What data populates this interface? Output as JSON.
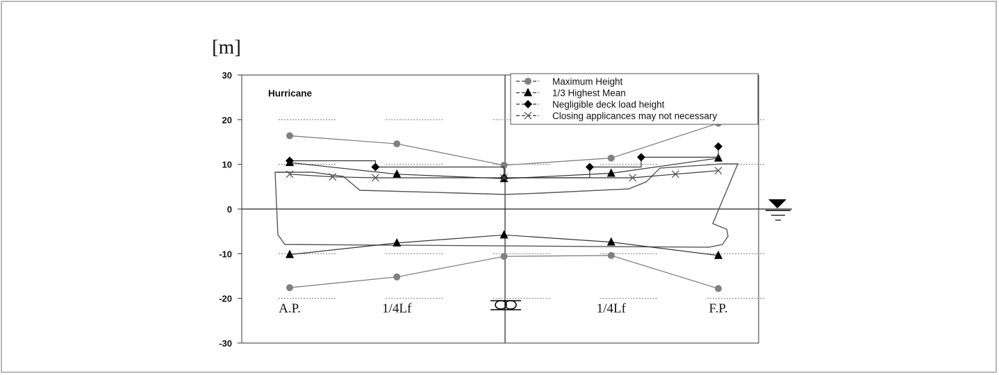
{
  "unit_label": "[m]",
  "chart_data": {
    "type": "line",
    "annotation": "Hurricane",
    "ylim": [
      -30,
      30
    ],
    "yticks": [
      30,
      20,
      10,
      0,
      -10,
      -20,
      -30
    ],
    "x_positions": [
      "A.P.",
      "1/4Lf",
      "1/4Lf",
      "F.P."
    ],
    "grid": false,
    "legend_position": "top-right",
    "series": [
      {
        "name": "Maximum Height",
        "marker": "circle",
        "color": "#808080",
        "x": [
          0,
          0.25,
          0.5,
          0.75,
          1.0
        ],
        "y": [
          16.4,
          14.6,
          9.8,
          11.4,
          19.2
        ]
      },
      {
        "name": "Maximum Height",
        "marker": "circle",
        "color": "#808080",
        "x": [
          0,
          0.25,
          0.5,
          0.75,
          1.0
        ],
        "y": [
          -17.6,
          -15.2,
          -10.6,
          -10.4,
          -17.8
        ]
      },
      {
        "name": "1/3 Highest Mean",
        "marker": "triangle",
        "color": "#000000",
        "x": [
          0,
          0.25,
          0.5,
          0.75,
          1.0
        ],
        "y": [
          10.4,
          7.8,
          6.8,
          8.0,
          11.4
        ]
      },
      {
        "name": "1/3 Highest Mean",
        "marker": "triangle",
        "color": "#000000",
        "x": [
          0,
          0.25,
          0.5,
          0.75,
          1.0
        ],
        "y": [
          -10.2,
          -7.6,
          -5.8,
          -7.4,
          -10.4
        ]
      },
      {
        "name": "Negligible deck load height",
        "marker": "diamond",
        "color": "#000000",
        "x": [
          0,
          0.2,
          0.5,
          0.7,
          0.82,
          1.0
        ],
        "y": [
          10.8,
          9.4,
          7.0,
          9.4,
          11.6,
          14.0
        ]
      },
      {
        "name": "Closing applicances may not necessary",
        "marker": "x",
        "color": "#555555",
        "x": [
          0,
          0.1,
          0.2,
          0.5,
          0.8,
          0.9,
          1.0
        ],
        "y": [
          7.8,
          7.2,
          7.0,
          7.0,
          7.0,
          7.8,
          8.6
        ]
      }
    ]
  }
}
